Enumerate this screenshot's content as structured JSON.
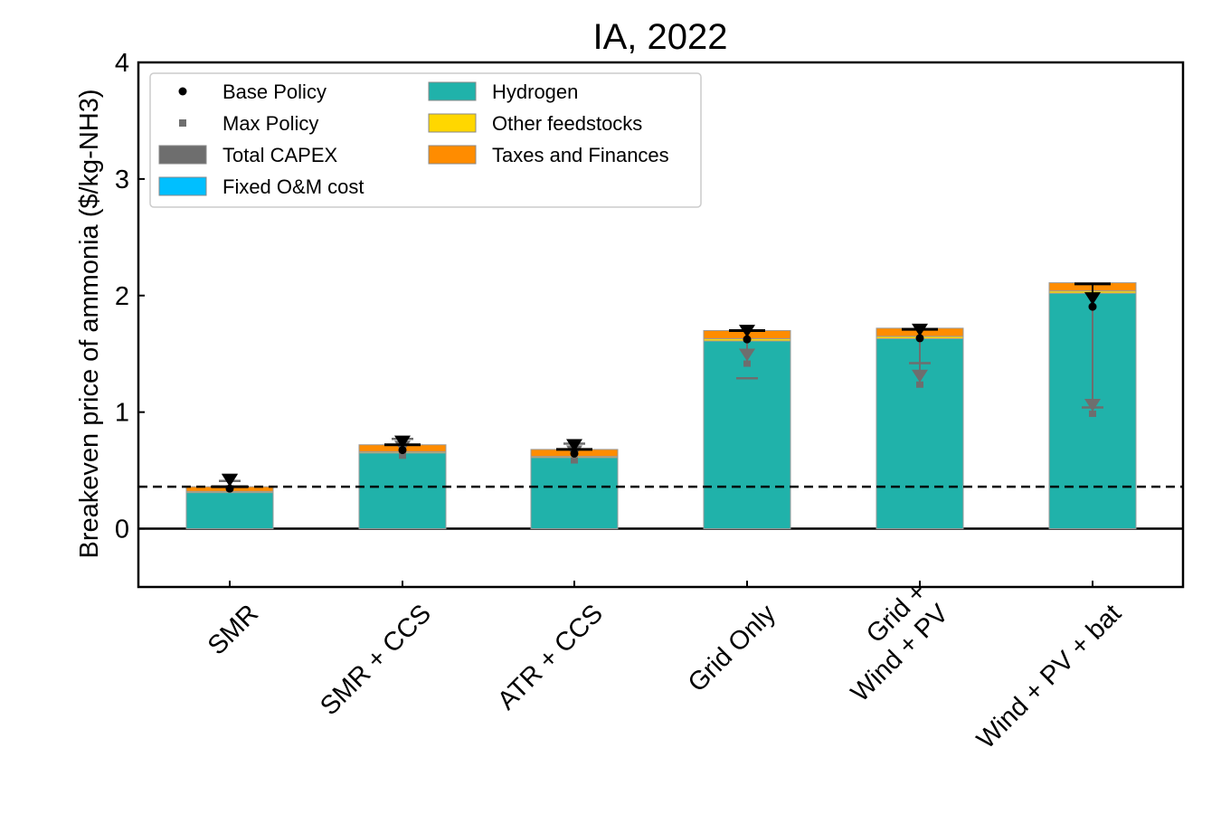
{
  "chart_data": {
    "type": "bar",
    "title": "IA, 2022",
    "xlabel": "",
    "ylabel": "Breakeven price of ammonia ($/kg-NH3)",
    "ylim": [
      -0.5,
      4
    ],
    "yticks": [
      "0",
      "1",
      "2",
      "3",
      "4"
    ],
    "categories": [
      "SMR",
      "SMR + CCS",
      "ATR + CCS",
      "Grid Only",
      "Grid +\nWind + PV",
      "Wind + PV + bat"
    ],
    "category_lines": [
      [
        "SMR"
      ],
      [
        "SMR + CCS"
      ],
      [
        "ATR + CCS"
      ],
      [
        "Grid Only"
      ],
      [
        "Grid +",
        "Wind + PV"
      ],
      [
        "Wind + PV + bat"
      ]
    ],
    "reference_line": 0.36,
    "stacked_series": [
      {
        "name": "Total CAPEX",
        "color": "#6e6e6e",
        "values": [
          0,
          0,
          0,
          0,
          0,
          0
        ]
      },
      {
        "name": "Fixed O&M cost",
        "color": "#00bfff",
        "values": [
          0,
          0,
          0,
          0,
          0,
          0
        ]
      },
      {
        "name": "Hydrogen",
        "color": "#20b2aa",
        "values": [
          0.31,
          0.65,
          0.61,
          1.61,
          1.63,
          2.02
        ]
      },
      {
        "name": "Other feedstocks",
        "color": "#ffd700",
        "values": [
          0.01,
          0.01,
          0.01,
          0.02,
          0.02,
          0.02
        ]
      },
      {
        "name": "Taxes and Finances",
        "color": "#ff8c00",
        "values": [
          0.04,
          0.06,
          0.06,
          0.07,
          0.07,
          0.07
        ]
      }
    ],
    "base_policy": {
      "name": "Base Policy",
      "cap": [
        0.36,
        0.72,
        0.68,
        1.7,
        1.71,
        2.1
      ],
      "point": [
        0.36,
        0.69,
        0.66,
        1.64,
        1.65,
        1.92
      ]
    },
    "max_policy": {
      "name": "Max Policy",
      "cap": [
        0.41,
        0.77,
        0.73,
        1.29,
        1.42,
        1.04
      ],
      "point": [
        0.35,
        0.63,
        0.59,
        1.42,
        1.24,
        0.99
      ]
    },
    "legend": {
      "position": "top-left",
      "items": [
        {
          "label": "Base Policy",
          "kind": "dot",
          "color": "#000000"
        },
        {
          "label": "Max Policy",
          "kind": "square",
          "color": "#6e6e6e"
        },
        {
          "label": "Total CAPEX",
          "kind": "patch",
          "color": "#6e6e6e"
        },
        {
          "label": "Fixed O&M cost",
          "kind": "patch",
          "color": "#00bfff"
        },
        {
          "label": "Hydrogen",
          "kind": "patch",
          "color": "#20b2aa"
        },
        {
          "label": "Other feedstocks",
          "kind": "patch",
          "color": "#ffd700"
        },
        {
          "label": "Taxes and Finances",
          "kind": "patch",
          "color": "#ff8c00"
        }
      ]
    },
    "grid": false
  }
}
